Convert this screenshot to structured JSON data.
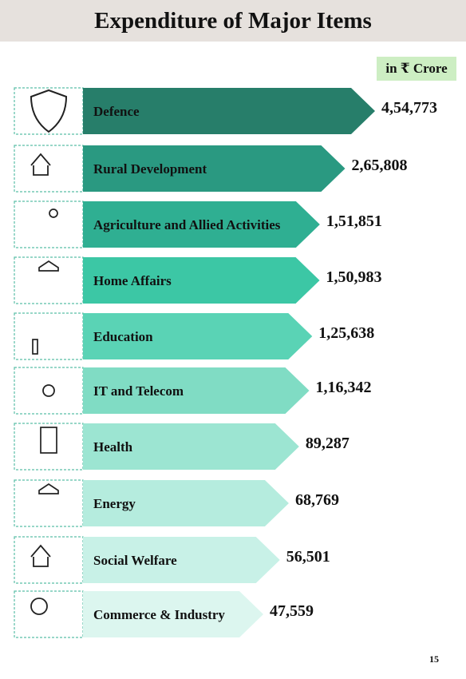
{
  "title": "Expenditure of Major Items",
  "unit_label": "in ₹ Crore",
  "page_number": "15",
  "chart_data": {
    "type": "bar",
    "orientation": "horizontal",
    "title": "Expenditure of Major Items",
    "unit": "in ₹ Crore",
    "categories": [
      "Defence",
      "Rural Development",
      "Agriculture and Allied Activities",
      "Home Affairs",
      "Education",
      "IT and Telecom",
      "Health",
      "Energy",
      "Social Welfare",
      "Commerce & Industry"
    ],
    "values": [
      454773,
      265808,
      151851,
      150983,
      125638,
      116342,
      89287,
      68769,
      56501,
      47559
    ],
    "value_labels": [
      "4,54,773",
      "2,65,808",
      "1,51,851",
      "1,50,983",
      "1,25,638",
      "1,16,342",
      "89,287",
      "68,769",
      "56,501",
      "47,559"
    ],
    "icons": [
      "fighter-jet-shield-icon",
      "farm-house-tractor-icon",
      "farmer-planting-icon",
      "police-officer-icon",
      "bar-chart-growth-icon",
      "network-people-icon",
      "hospital-building-icon",
      "police-officer-icon",
      "farm-house-tractor-icon",
      "factory-robot-arm-icon"
    ],
    "colors": [
      "#277e6a",
      "#2a9981",
      "#2faf92",
      "#3cc7a5",
      "#5ad3b5",
      "#80dcc4",
      "#9ce5d2",
      "#b5ecde",
      "#c8f1e7",
      "#dcf6ef"
    ]
  }
}
